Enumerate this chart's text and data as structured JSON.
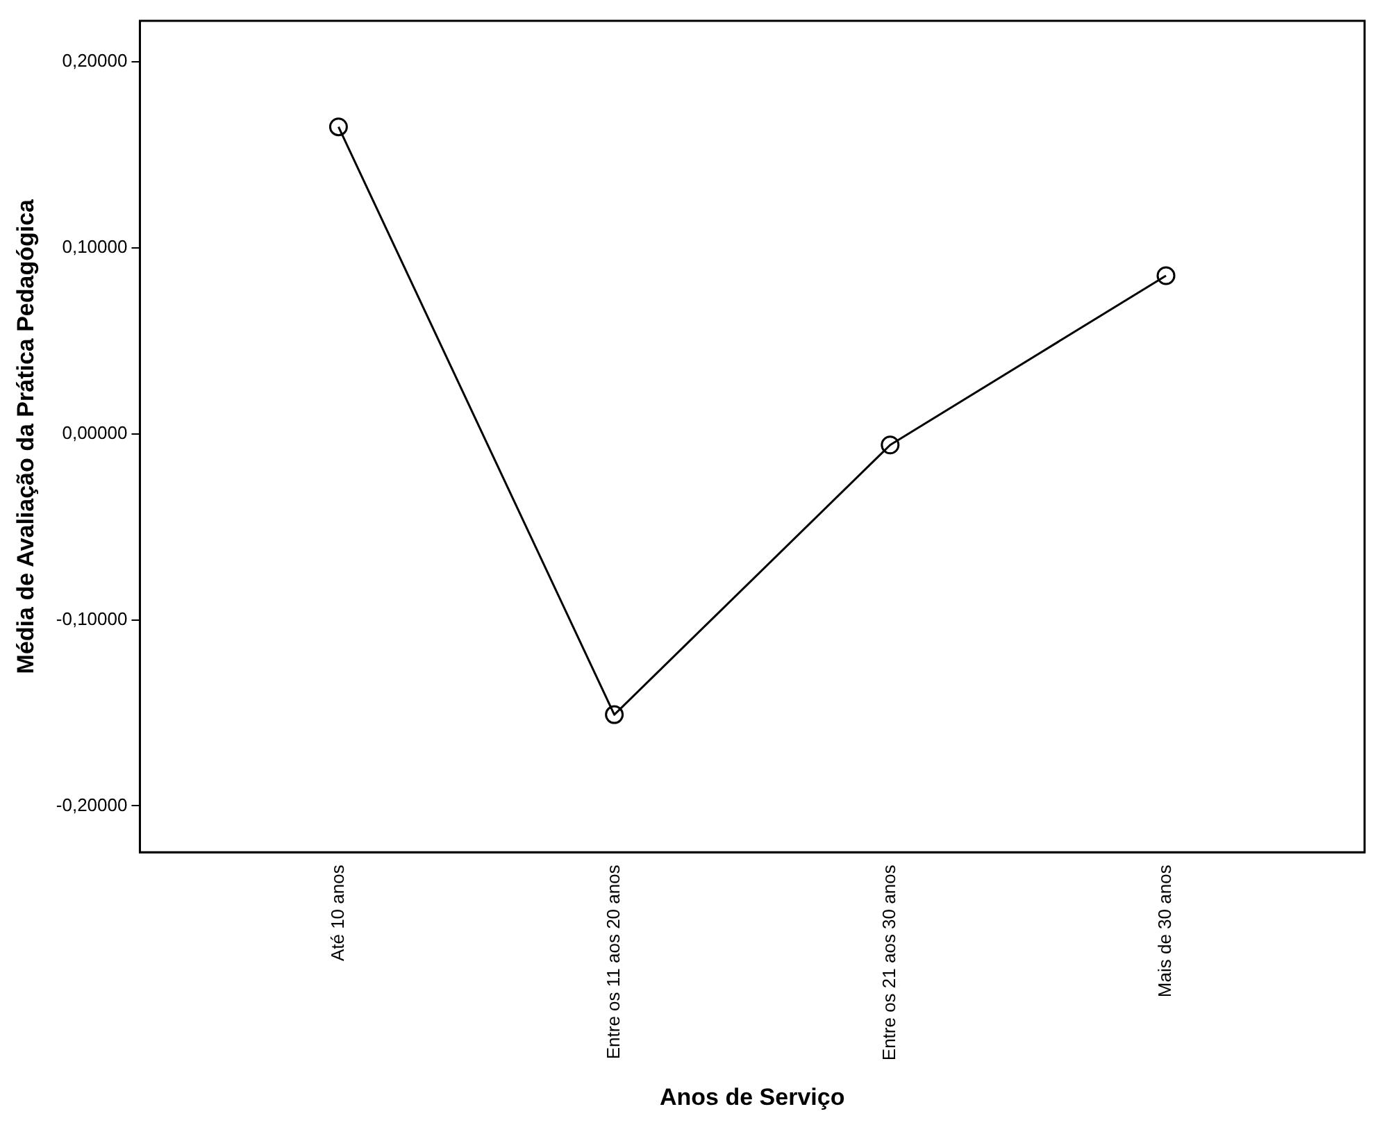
{
  "chart_data": {
    "type": "line",
    "xlabel": "Anos de Serviço",
    "ylabel": "Média de Avaliação da Prática Pedagógica",
    "categories": [
      "Até 10 anos",
      "Entre os 11 aos 20 anos",
      "Entre os 21 aos 30 anos",
      "Mais de 30 anos"
    ],
    "series": [
      {
        "color": "#000000",
        "values": [
          0.165,
          -0.151,
          -0.006,
          0.085
        ]
      }
    ],
    "ylim": [
      -0.225,
      0.222
    ],
    "yticks": [
      {
        "value": -0.2,
        "label": "-0,20000"
      },
      {
        "value": -0.1,
        "label": "-0,10000"
      },
      {
        "value": 0,
        "label": "0,00000"
      },
      {
        "value": 0.1,
        "label": "0,10000"
      },
      {
        "value": 0.2,
        "label": "0,20000"
      }
    ],
    "grid": false,
    "legend": false,
    "marker": "circle",
    "line_style": "solid"
  }
}
